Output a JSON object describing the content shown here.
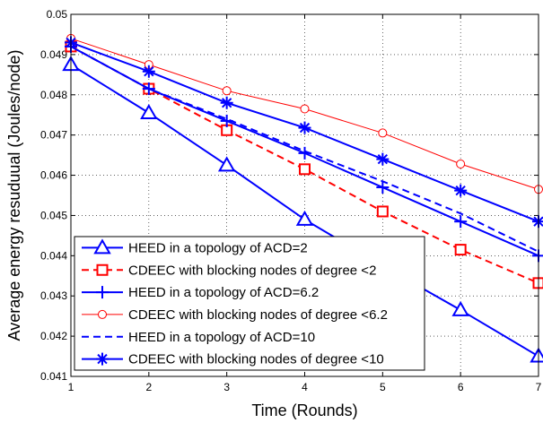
{
  "chart_data": {
    "type": "line",
    "xlabel": "Time (Rounds)",
    "ylabel": "Average energy resuduual (Joules/node)",
    "x": [
      1,
      2,
      3,
      4,
      5,
      6,
      7
    ],
    "xlim": [
      1,
      7
    ],
    "ylim": [
      0.041,
      0.05
    ],
    "xticks": [
      "1",
      "2",
      "3",
      "4",
      "5",
      "6",
      "7"
    ],
    "yticks": [
      "0.041",
      "0.042",
      "0.043",
      "0.044",
      "0.045",
      "0.046",
      "0.047",
      "0.048",
      "0.049",
      "0.05"
    ],
    "grid": true,
    "legend_position": "bottom-left",
    "series": [
      {
        "name": "HEED in a topology of ACD=2",
        "values": [
          0.04875,
          0.04755,
          0.04625,
          0.0449,
          0.04375,
          0.04265,
          0.0415
        ],
        "color": "#0000ff",
        "line": "solid",
        "marker": "triangle",
        "width": 2
      },
      {
        "name": "CDEEC with blocking nodes of degree <2",
        "values": [
          0.0492,
          0.04815,
          0.04712,
          0.04615,
          0.0451,
          0.04415,
          0.04332
        ],
        "color": "#ff0000",
        "line": "dashed",
        "marker": "square",
        "width": 2
      },
      {
        "name": "HEED in a topology of ACD=6.2",
        "values": [
          0.0492,
          0.04815,
          0.04735,
          0.04655,
          0.0457,
          0.04485,
          0.044
        ],
        "color": "#0000ff",
        "line": "solid",
        "marker": "plus",
        "width": 2
      },
      {
        "name": "CDEEC with blocking nodes of degree <6.2",
        "values": [
          0.0494,
          0.04875,
          0.0481,
          0.04765,
          0.04705,
          0.04628,
          0.04565
        ],
        "color": "#ff0000",
        "line": "solid",
        "marker": "circle",
        "width": 1
      },
      {
        "name": "HEED in a topology of ACD=10",
        "values": [
          0.0492,
          0.04815,
          0.0474,
          0.0466,
          0.04585,
          0.04505,
          0.0441
        ],
        "color": "#0000ff",
        "line": "dashed",
        "marker": "none",
        "width": 2
      },
      {
        "name": "CDEEC with blocking nodes of degree <10",
        "values": [
          0.0493,
          0.04858,
          0.0478,
          0.04718,
          0.0464,
          0.04562,
          0.04485
        ],
        "color": "#0000ff",
        "line": "solid",
        "marker": "star",
        "width": 2
      }
    ]
  }
}
